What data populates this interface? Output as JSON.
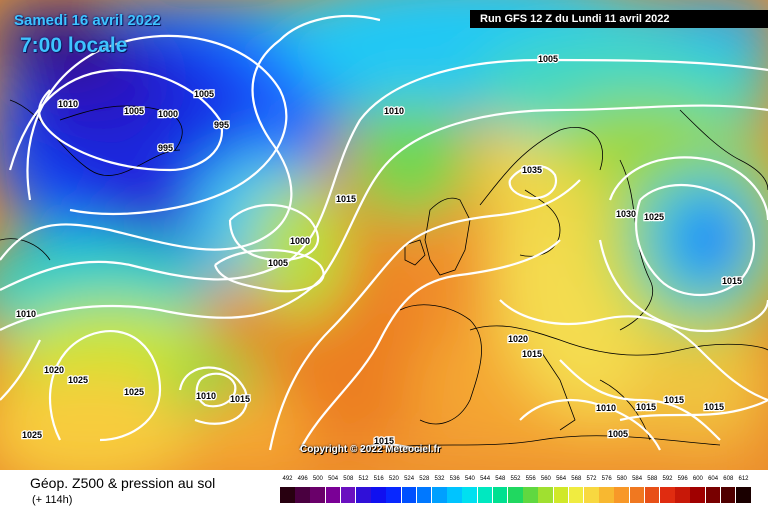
{
  "header": {
    "date": "Samedi 16 avril 2022",
    "time": "7:00 locale",
    "run": "Run GFS 12 Z du Lundi 11 avril 2022"
  },
  "copyright": "Copyright © 2022 Meteociel.fr",
  "footer": {
    "title": "Géop. Z500 & pression au sol",
    "lead": "(+ 114h)"
  },
  "scale": {
    "ticks": [
      "492",
      "496",
      "500",
      "504",
      "508",
      "512",
      "516",
      "520",
      "524",
      "528",
      "532",
      "536",
      "540",
      "544",
      "548",
      "552",
      "556",
      "560",
      "564",
      "568",
      "572",
      "576",
      "580",
      "584",
      "588",
      "592",
      "596",
      "600",
      "604",
      "608",
      "612"
    ],
    "colors": [
      "#280010",
      "#4a0040",
      "#6a006a",
      "#7a0096",
      "#6a10c0",
      "#3010d8",
      "#1010f0",
      "#0828ff",
      "#0050ff",
      "#0078ff",
      "#00a0ff",
      "#00c4ff",
      "#00e0f0",
      "#00e8c0",
      "#00e090",
      "#20d860",
      "#60d840",
      "#a0e030",
      "#d0e828",
      "#f0ec40",
      "#f8d840",
      "#f8b830",
      "#f89828",
      "#f07820",
      "#e85018",
      "#e02c10",
      "#c81808",
      "#a00000",
      "#780000",
      "#500000",
      "#1a0000"
    ]
  },
  "pressure_labels": [
    {
      "text": "1010"
    },
    {
      "text": "1005"
    },
    {
      "text": "1000"
    },
    {
      "text": "995"
    },
    {
      "text": "995"
    },
    {
      "text": "1005"
    },
    {
      "text": "1010"
    },
    {
      "text": "1005"
    },
    {
      "text": "1015"
    },
    {
      "text": "1000"
    },
    {
      "text": "1005"
    },
    {
      "text": "1035"
    },
    {
      "text": "1030"
    },
    {
      "text": "1025"
    },
    {
      "text": "1015"
    },
    {
      "text": "1010"
    },
    {
      "text": "1020"
    },
    {
      "text": "1025"
    },
    {
      "text": "1025"
    },
    {
      "text": "1010"
    },
    {
      "text": "1015"
    },
    {
      "text": "1025"
    },
    {
      "text": "1020"
    },
    {
      "text": "1015"
    },
    {
      "text": "1010"
    },
    {
      "text": "1015"
    },
    {
      "text": "1015"
    },
    {
      "text": "1005"
    },
    {
      "text": "1015"
    },
    {
      "text": "1015"
    }
  ]
}
